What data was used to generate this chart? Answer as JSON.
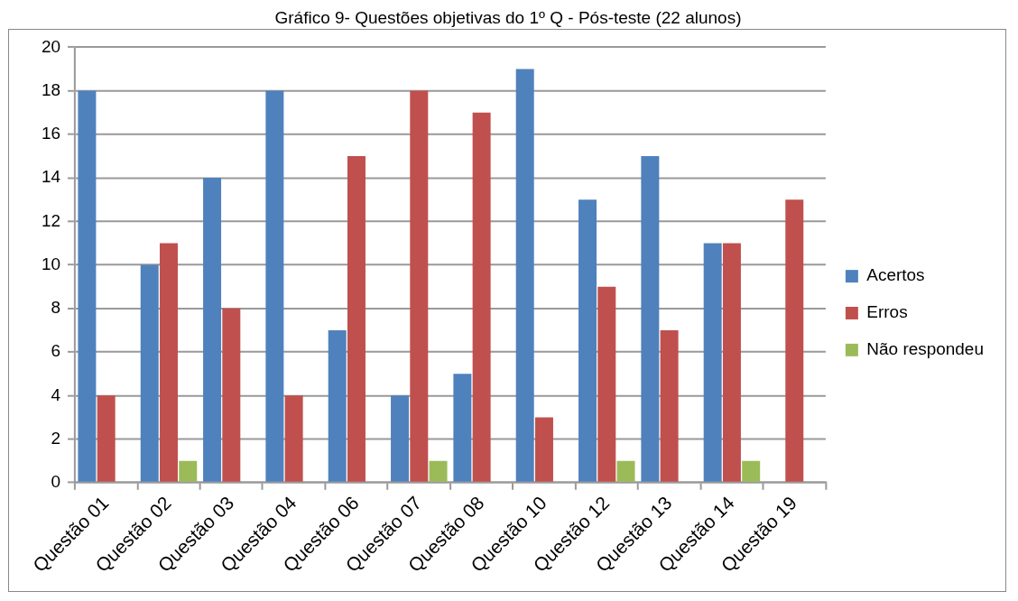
{
  "chart_data": {
    "type": "bar",
    "title": "Gráfico 9- Questões objetivas do 1º Q - Pós-teste (22 alunos)",
    "categories": [
      "Questão 01",
      "Questão 02",
      "Questão 03",
      "Questão 04",
      "Questão 06",
      "Questão 07",
      "Questão 08",
      "Questão 10",
      "Questão 12",
      "Questão 13",
      "Questão 14",
      "Questão 19"
    ],
    "series": [
      {
        "name": "Acertos",
        "color": "#4f81bd",
        "values": [
          18,
          10,
          14,
          18,
          7,
          4,
          5,
          19,
          13,
          15,
          11,
          0
        ]
      },
      {
        "name": "Erros",
        "color": "#c0504d",
        "values": [
          4,
          11,
          8,
          4,
          15,
          18,
          17,
          3,
          9,
          7,
          11,
          13
        ]
      },
      {
        "name": "Não respondeu",
        "color": "#9bbb59",
        "values": [
          0,
          1,
          0,
          0,
          0,
          1,
          0,
          0,
          1,
          0,
          1,
          0
        ]
      }
    ],
    "ylim": [
      0,
      20
    ],
    "yticks": [
      0,
      2,
      4,
      6,
      8,
      10,
      12,
      14,
      16,
      18,
      20
    ],
    "grid": "y",
    "legend": "right"
  }
}
